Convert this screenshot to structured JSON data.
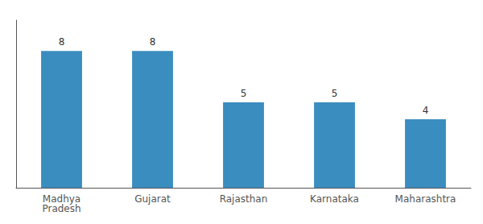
{
  "chart_data": {
    "type": "bar",
    "categories": [
      "Madhya\nPradesh",
      "Gujarat",
      "Rajasthan",
      "Karnataka",
      "Maharashtra"
    ],
    "values": [
      8,
      8,
      5,
      5,
      4
    ],
    "color": "#3a8dbf",
    "ylim": [
      0,
      9.8
    ],
    "data_labels": true,
    "tick_labels": "x",
    "grid": false
  }
}
